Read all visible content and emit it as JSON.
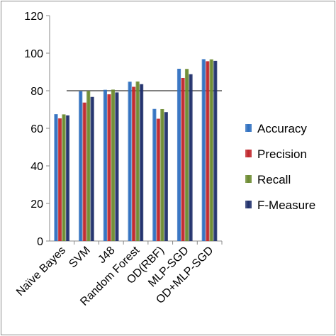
{
  "chart_data": {
    "type": "bar",
    "title": "",
    "xlabel": "",
    "ylabel": "",
    "ylim": [
      0,
      120
    ],
    "yticks": [
      0,
      20,
      40,
      60,
      80,
      100,
      120
    ],
    "grid": "single horizontal line at 80",
    "legend": "right",
    "categories": [
      "Naïve Bayes",
      "SVM",
      "J48",
      "Random Forest",
      "OD(RBF)",
      "MLP-SGD",
      "OD+MLP-SGD"
    ],
    "series": [
      {
        "name": "Accuracy",
        "color": "#2e6fc0",
        "values": [
          67.5,
          79.8,
          80.5,
          84.8,
          70.3,
          91.7,
          96.8
        ]
      },
      {
        "name": "Precision",
        "color": "#c0262b",
        "values": [
          65.3,
          73.7,
          78.1,
          82.1,
          65.1,
          86.8,
          95.7
        ]
      },
      {
        "name": "Recall",
        "color": "#6b8a2f",
        "values": [
          67.4,
          79.9,
          80.6,
          84.9,
          70.2,
          91.6,
          96.7
        ]
      },
      {
        "name": "F-Measure",
        "color": "#1f2f6b",
        "values": [
          66.9,
          76.7,
          79.1,
          83.5,
          68.6,
          88.8,
          95.9
        ]
      }
    ]
  }
}
